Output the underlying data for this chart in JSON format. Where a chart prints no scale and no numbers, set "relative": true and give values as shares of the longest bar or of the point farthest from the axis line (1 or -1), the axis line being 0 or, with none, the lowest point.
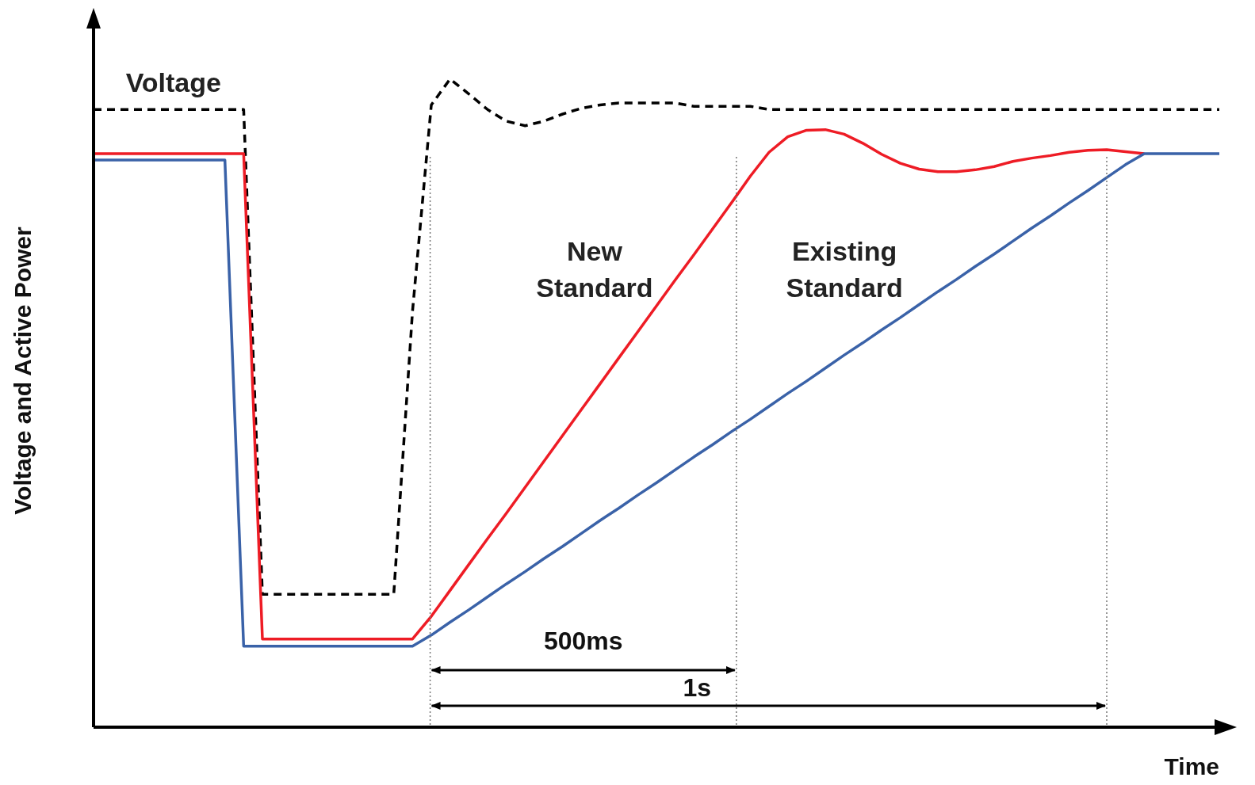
{
  "chart_data": {
    "type": "line",
    "relative": true,
    "xlabel": "Time",
    "ylabel": "Voltage and Active Power",
    "marker": "none",
    "categories": [
      null,
      null,
      null,
      null,
      null,
      null,
      null,
      null,
      null,
      null,
      null,
      null,
      null,
      null,
      null,
      null,
      null,
      null,
      null,
      null,
      null,
      null,
      null,
      null,
      null,
      null,
      null,
      null,
      null,
      null,
      null,
      null,
      null,
      null,
      null,
      null,
      null,
      null,
      null,
      null,
      null,
      null,
      null,
      null,
      null,
      null,
      null,
      null,
      null,
      null,
      null,
      null,
      null,
      null,
      null,
      null,
      null,
      null,
      null,
      null,
      null
    ],
    "series": [
      {
        "name": "Voltage",
        "color": "#000000",
        "line_style": "dashed",
        "values": [
          0.953,
          0.953,
          0.953,
          0.953,
          0.953,
          0.953,
          0.953,
          0.953,
          0.953,
          0.205,
          0.205,
          0.205,
          0.205,
          0.205,
          0.205,
          0.205,
          0.205,
          0.642,
          0.96,
          1.0,
          0.977,
          0.953,
          0.935,
          0.928,
          0.935,
          0.946,
          0.955,
          0.96,
          0.963,
          0.963,
          0.963,
          0.963,
          0.958,
          0.958,
          0.958,
          0.958,
          0.953,
          0.953,
          0.953,
          0.953,
          0.953,
          0.953,
          0.953,
          0.953,
          0.953,
          0.953,
          0.953,
          0.953,
          0.953,
          0.953,
          0.953,
          0.953,
          0.953,
          0.953,
          0.953,
          0.953,
          0.953,
          0.953,
          0.953,
          0.953,
          0.953
        ]
      },
      {
        "name": "New Standard",
        "color": "#ee1c25",
        "line_style": "solid",
        "values": [
          0.885,
          0.885,
          0.885,
          0.885,
          0.885,
          0.885,
          0.885,
          0.885,
          0.885,
          0.136,
          0.136,
          0.136,
          0.136,
          0.136,
          0.136,
          0.136,
          0.136,
          0.136,
          0.171,
          0.211,
          0.251,
          0.291,
          0.33,
          0.37,
          0.41,
          0.45,
          0.49,
          0.53,
          0.57,
          0.61,
          0.65,
          0.69,
          0.729,
          0.769,
          0.809,
          0.85,
          0.887,
          0.911,
          0.921,
          0.922,
          0.915,
          0.901,
          0.884,
          0.87,
          0.861,
          0.857,
          0.857,
          0.86,
          0.865,
          0.873,
          0.878,
          0.882,
          0.887,
          0.89,
          0.891,
          0.888,
          0.885,
          null,
          null,
          null,
          null
        ]
      },
      {
        "name": "Existing Standard",
        "color": "#3a62a8",
        "line_style": "solid",
        "values": [
          0.875,
          0.875,
          0.875,
          0.875,
          0.875,
          0.875,
          0.875,
          0.875,
          0.125,
          0.125,
          0.125,
          0.125,
          0.125,
          0.125,
          0.125,
          0.125,
          0.125,
          0.125,
          0.142,
          0.162,
          0.181,
          0.201,
          0.221,
          0.24,
          0.26,
          0.279,
          0.299,
          0.319,
          0.338,
          0.358,
          0.377,
          0.397,
          0.417,
          0.436,
          0.456,
          0.475,
          0.495,
          0.515,
          0.534,
          0.554,
          0.574,
          0.593,
          0.613,
          0.632,
          0.652,
          0.672,
          0.691,
          0.711,
          0.73,
          0.75,
          0.77,
          0.789,
          0.809,
          0.828,
          0.848,
          0.868,
          0.885,
          0.885,
          0.885,
          0.885,
          0.885
        ]
      }
    ],
    "annotations": [
      "500ms",
      "1s"
    ]
  }
}
